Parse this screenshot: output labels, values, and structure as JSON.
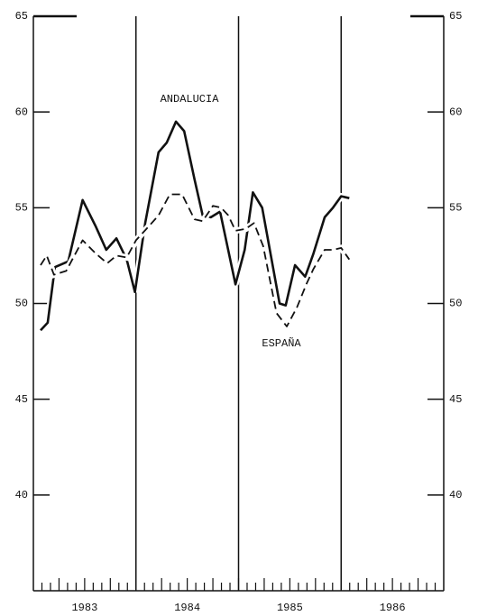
{
  "chart_data": {
    "type": "line",
    "annotations": [
      "ANDALUCIA",
      "ESPAÑA"
    ],
    "xlim": [
      1983,
      1987
    ],
    "xticks": [
      {
        "value": 1983.5,
        "label": "1983"
      },
      {
        "value": 1984.5,
        "label": "1984"
      },
      {
        "value": 1985.5,
        "label": "1985"
      },
      {
        "value": 1986.5,
        "label": "1986"
      }
    ],
    "vlines": [
      1984,
      1985,
      1986
    ],
    "ylim": [
      35,
      65
    ],
    "yticks": [
      40,
      45,
      50,
      55,
      60,
      65
    ],
    "series": [
      {
        "name": "ANDALUCIA",
        "color": "#111111",
        "dash": false,
        "x": [
          1983.07,
          1983.14,
          1983.21,
          1983.34,
          1983.48,
          1983.61,
          1983.71,
          1983.81,
          1983.91,
          1983.99,
          1984.09,
          1984.22,
          1984.3,
          1984.39,
          1984.47,
          1984.57,
          1984.65,
          1984.73,
          1984.82,
          1984.97,
          1985.06,
          1985.14,
          1985.23,
          1985.4,
          1985.46,
          1985.55,
          1985.65,
          1985.73,
          1985.84,
          1985.92,
          1986.0,
          1986.08
        ],
        "values": [
          48.6,
          49.0,
          51.9,
          52.2,
          55.4,
          54.0,
          52.8,
          53.4,
          52.3,
          50.6,
          54.2,
          57.9,
          58.4,
          59.5,
          59.0,
          56.5,
          54.6,
          54.5,
          54.8,
          51.0,
          52.8,
          55.8,
          55.0,
          50.0,
          49.9,
          52.0,
          51.4,
          52.6,
          54.5,
          55.0,
          55.6,
          55.5
        ]
      },
      {
        "name": "ESPAÑA",
        "color": "#111111",
        "dash": true,
        "x": [
          1983.07,
          1983.13,
          1983.2,
          1983.32,
          1983.48,
          1983.61,
          1983.72,
          1983.81,
          1983.91,
          1984.0,
          1984.12,
          1984.22,
          1984.33,
          1984.45,
          1984.57,
          1984.65,
          1984.75,
          1984.83,
          1984.9,
          1984.97,
          1985.07,
          1985.15,
          1985.24,
          1985.37,
          1985.47,
          1985.57,
          1985.66,
          1985.73,
          1985.84,
          1985.92,
          1986.0,
          1986.08
        ],
        "values": [
          52.0,
          52.5,
          51.5,
          51.7,
          53.3,
          52.6,
          52.1,
          52.5,
          52.4,
          53.3,
          54.0,
          54.6,
          55.7,
          55.7,
          54.4,
          54.3,
          55.1,
          55.0,
          54.6,
          53.8,
          53.9,
          54.2,
          53.0,
          49.5,
          48.8,
          49.8,
          51.0,
          51.8,
          52.8,
          52.8,
          52.9,
          52.3
        ]
      }
    ]
  }
}
